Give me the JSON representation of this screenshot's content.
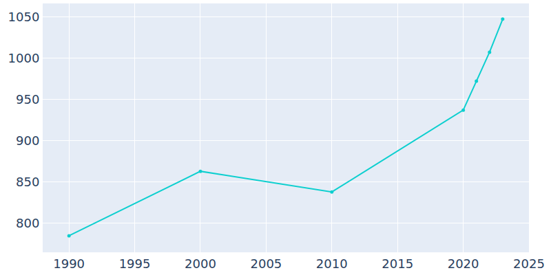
{
  "chart_data": {
    "type": "line",
    "x": [
      1990,
      2000,
      2010,
      2020,
      2021,
      2022,
      2023
    ],
    "values": [
      785,
      863,
      838,
      937,
      972,
      1007,
      1047
    ],
    "color": "#0dcfcf",
    "marker": "circle",
    "xlim": [
      1988,
      2025
    ],
    "xticks": [
      1990,
      1995,
      2000,
      2005,
      2010,
      2015,
      2020,
      2025
    ],
    "ylim": [
      765,
      1066
    ],
    "yticks": [
      800,
      850,
      900,
      950,
      1000,
      1050
    ],
    "grid": true
  }
}
